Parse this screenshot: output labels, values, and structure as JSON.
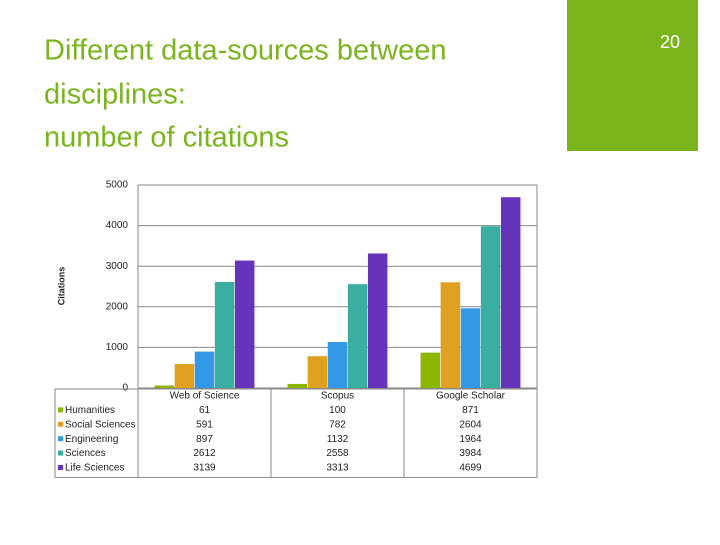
{
  "slide_number": "20",
  "chart_data": {
    "type": "bar",
    "title": [
      "Different data-sources between",
      "disciplines:",
      "number of citations"
    ],
    "y_label": "Citations",
    "categories": [
      "Web of Science",
      "Scopus",
      "Google Scholar"
    ],
    "series": [
      {
        "name": "Humanities",
        "color": "#8db600",
        "values": [
          61,
          100,
          871
        ]
      },
      {
        "name": "Social Sciences",
        "color": "#e0a020",
        "values": [
          591,
          782,
          2604
        ]
      },
      {
        "name": "Engineering",
        "color": "#3399e6",
        "values": [
          897,
          1132,
          1964
        ]
      },
      {
        "name": "Sciences",
        "color": "#3aaea0",
        "values": [
          2612,
          2558,
          3984
        ]
      },
      {
        "name": "Life Sciences",
        "color": "#6633bb",
        "values": [
          3139,
          3313,
          4699
        ]
      }
    ],
    "ylim": [
      0,
      5000
    ],
    "yticks": [
      0,
      1000,
      2000,
      3000,
      4000,
      5000
    ],
    "grid": true
  }
}
